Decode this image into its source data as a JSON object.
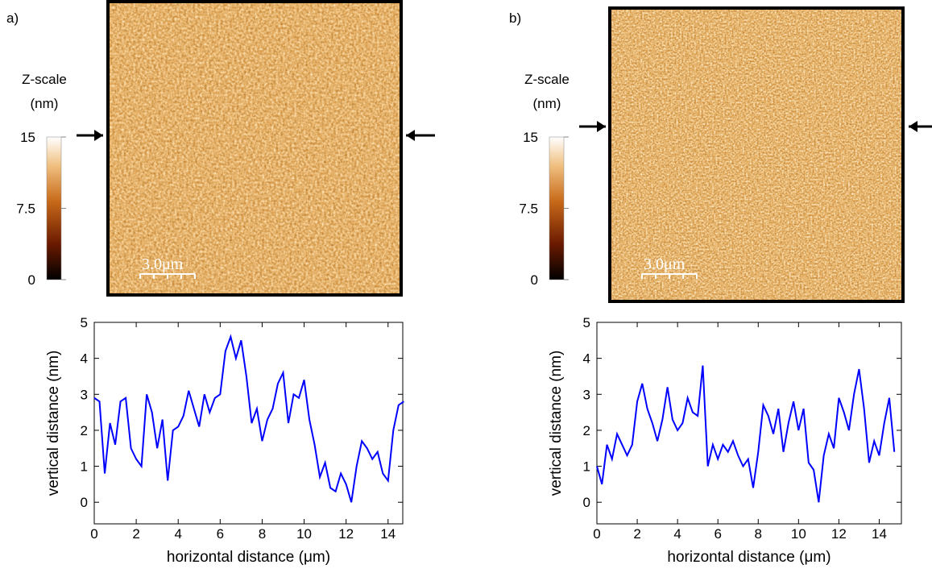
{
  "panels": [
    {
      "label": "a)",
      "zscale_title": "Z-scale",
      "zscale_unit": "(nm)",
      "zscale_ticks": [
        15,
        7.5,
        0
      ],
      "zscale_lim": [
        0,
        15
      ],
      "scale_bar": "3.0μm"
    },
    {
      "label": "b)",
      "zscale_title": "Z-scale",
      "zscale_unit": "(nm)",
      "zscale_ticks": [
        15,
        7.5,
        0
      ],
      "zscale_lim": [
        0,
        15
      ],
      "scale_bar": "3.0μm"
    }
  ],
  "chart_data": [
    {
      "type": "line",
      "xlabel": "horizontal distance (μm)",
      "ylabel": "vertical distance (nm)",
      "x": [
        0,
        0.25,
        0.5,
        0.75,
        1,
        1.25,
        1.5,
        1.75,
        2,
        2.25,
        2.5,
        2.75,
        3,
        3.25,
        3.5,
        3.75,
        4,
        4.25,
        4.5,
        4.75,
        5,
        5.25,
        5.5,
        5.75,
        6,
        6.25,
        6.5,
        6.75,
        7,
        7.25,
        7.5,
        7.75,
        8,
        8.25,
        8.5,
        8.75,
        9,
        9.25,
        9.5,
        9.75,
        10,
        10.25,
        10.5,
        10.75,
        11,
        11.25,
        11.5,
        11.75,
        12,
        12.25,
        12.5,
        12.75,
        13,
        13.25,
        13.5,
        13.75,
        14,
        14.25,
        14.5,
        14.75
      ],
      "series": [
        {
          "color": "#0000ff",
          "values": [
            2.9,
            2.8,
            0.8,
            2.2,
            1.6,
            2.8,
            2.9,
            1.5,
            1.2,
            1.0,
            3.0,
            2.5,
            1.5,
            2.3,
            0.6,
            2.0,
            2.1,
            2.4,
            3.1,
            2.6,
            2.1,
            3.0,
            2.5,
            2.9,
            3.0,
            4.2,
            4.6,
            4.0,
            4.5,
            3.5,
            2.2,
            2.6,
            1.7,
            2.3,
            2.6,
            3.3,
            3.6,
            2.2,
            3.0,
            2.9,
            3.4,
            2.3,
            1.6,
            0.7,
            1.1,
            0.4,
            0.3,
            0.8,
            0.5,
            0.0,
            1.0,
            1.7,
            1.5,
            1.2,
            1.4,
            0.8,
            0.6,
            2.0,
            2.7,
            2.8
          ]
        }
      ],
      "xlim": [
        0,
        14.7
      ],
      "ylim": [
        -0.6,
        5
      ],
      "xticks": [
        0,
        2,
        4,
        6,
        8,
        10,
        12,
        14
      ],
      "yticks": [
        0,
        1,
        2,
        3,
        4,
        5
      ]
    },
    {
      "type": "line",
      "xlabel": "horizontal distance (μm)",
      "ylabel": "vertical distance (nm)",
      "x": [
        0,
        0.25,
        0.5,
        0.75,
        1,
        1.25,
        1.5,
        1.75,
        2,
        2.25,
        2.5,
        2.75,
        3,
        3.25,
        3.5,
        3.75,
        4,
        4.25,
        4.5,
        4.75,
        5,
        5.25,
        5.5,
        5.75,
        6,
        6.25,
        6.5,
        6.75,
        7,
        7.25,
        7.5,
        7.75,
        8,
        8.25,
        8.5,
        8.75,
        9,
        9.25,
        9.5,
        9.75,
        10,
        10.25,
        10.5,
        10.75,
        11,
        11.25,
        11.5,
        11.75,
        12,
        12.25,
        12.5,
        12.75,
        13,
        13.25,
        13.5,
        13.75,
        14,
        14.25,
        14.5,
        14.75
      ],
      "series": [
        {
          "color": "#0000ff",
          "values": [
            1.0,
            0.5,
            1.6,
            1.2,
            1.9,
            1.6,
            1.3,
            1.6,
            2.8,
            3.3,
            2.6,
            2.2,
            1.7,
            2.3,
            3.2,
            2.3,
            2.0,
            2.2,
            2.9,
            2.5,
            2.4,
            3.8,
            1.0,
            1.6,
            1.2,
            1.6,
            1.4,
            1.7,
            1.3,
            1.0,
            1.2,
            0.4,
            1.4,
            2.7,
            2.4,
            1.9,
            2.6,
            1.4,
            2.2,
            2.8,
            2.0,
            2.6,
            1.1,
            0.9,
            0.0,
            1.3,
            1.9,
            1.5,
            2.9,
            2.5,
            2.0,
            3.0,
            3.7,
            2.6,
            1.1,
            1.7,
            1.3,
            2.2,
            2.9,
            1.4
          ]
        }
      ],
      "xlim": [
        0,
        15.1
      ],
      "ylim": [
        -0.6,
        5
      ],
      "xticks": [
        0,
        2,
        4,
        6,
        8,
        10,
        12,
        14
      ],
      "yticks": [
        0,
        1,
        2,
        3,
        4,
        5
      ]
    }
  ]
}
